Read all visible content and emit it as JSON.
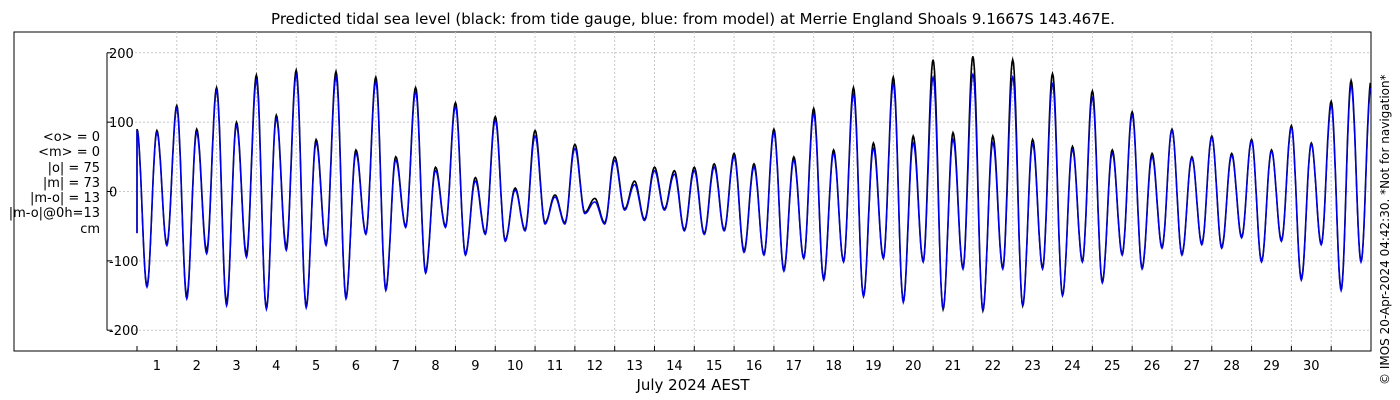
{
  "chart_data": {
    "type": "line",
    "title": "Predicted tidal sea level (black: from tide gauge, blue: from model) at Merrie England Shoals 9.1667S 143.467E.",
    "xlabel": "July 2024 AEST",
    "ylabel": "",
    "xlim": [
      0,
      31
    ],
    "ylim": [
      -230,
      230
    ],
    "y_ticks": [
      -200,
      -100,
      0,
      100,
      200
    ],
    "x_ticks": [
      "1",
      "2",
      "3",
      "4",
      "5",
      "6",
      "7",
      "8",
      "9",
      "10",
      "11",
      "12",
      "13",
      "14",
      "15",
      "16",
      "17",
      "18",
      "19",
      "20",
      "21",
      "22",
      "23",
      "24",
      "25",
      "26",
      "27",
      "28",
      "29",
      "30"
    ],
    "grid": true,
    "legend": "none",
    "stats": [
      "<o> = 0",
      "<m> = 0",
      "|o| = 75",
      "|m| = 73",
      "|m-o| = 13",
      "|m-o|@0h=13",
      "cm"
    ],
    "series": [
      {
        "name": "black: from tide gauge",
        "color": "#000000",
        "x": [
          0,
          0.5,
          1,
          1.5,
          2,
          2.5,
          3,
          3.5,
          4,
          4.5,
          5,
          5.5,
          6,
          6.5,
          7,
          7.5,
          8,
          8.5,
          9,
          9.5,
          10,
          10.5,
          11,
          11.5,
          12,
          12.5,
          13,
          13.5,
          14,
          14.5,
          15,
          15.5,
          16,
          16.5,
          17,
          17.5,
          18,
          18.5,
          19,
          19.5,
          20,
          20.5,
          21,
          21.5,
          22,
          22.5,
          23,
          23.5,
          24,
          24.5,
          25,
          25.5,
          26,
          26.5,
          27,
          27.5,
          28,
          28.5,
          29,
          29.5,
          30,
          30.5
        ],
        "highs": [
          90,
          88,
          124,
          90,
          150,
          100,
          168,
          110,
          175,
          75,
          173,
          60,
          165,
          50,
          150,
          35,
          128,
          20,
          108,
          5,
          88,
          -5,
          68,
          -10,
          50,
          15,
          35,
          30,
          35,
          40,
          55,
          40,
          90,
          50,
          120,
          60,
          150,
          70,
          165,
          80,
          190,
          85,
          195,
          80,
          190,
          75,
          170,
          65,
          145,
          60,
          115,
          55,
          90,
          50,
          80,
          55,
          75,
          60,
          95,
          70,
          130,
          160
        ],
        "lows": [
          -135,
          -75,
          -150,
          -85,
          -160,
          -90,
          -168,
          -80,
          -165,
          -75,
          -152,
          -60,
          -140,
          -50,
          -115,
          -50,
          -90,
          -60,
          -70,
          -55,
          -45,
          -45,
          -30,
          -45,
          -25,
          -40,
          -25,
          -55,
          -60,
          -55,
          -85,
          -90,
          -112,
          -95,
          -125,
          -100,
          -150,
          -95,
          -158,
          -100,
          -170,
          -110,
          -172,
          -110,
          -165,
          -110,
          -150,
          -100,
          -130,
          -90,
          -110,
          -80,
          -90,
          -75,
          -80,
          -65,
          -100,
          -70,
          -125,
          -75,
          -140,
          -100
        ]
      },
      {
        "name": "blue: from model",
        "color": "#0000ee",
        "x": [
          0,
          0.5,
          1,
          1.5,
          2,
          2.5,
          3,
          3.5,
          4,
          4.5,
          5,
          5.5,
          6,
          6.5,
          7,
          7.5,
          8,
          8.5,
          9,
          9.5,
          10,
          10.5,
          11,
          11.5,
          12,
          12.5,
          13,
          13.5,
          14,
          14.5,
          15,
          15.5,
          16,
          16.5,
          17,
          17.5,
          18,
          18.5,
          19,
          19.5,
          20,
          20.5,
          21,
          21.5,
          22,
          22.5,
          23,
          23.5,
          24,
          24.5,
          25,
          25.5,
          26,
          26.5,
          27,
          27.5,
          28,
          28.5,
          29,
          29.5,
          30,
          30.5
        ],
        "highs": [
          88,
          85,
          120,
          85,
          145,
          95,
          160,
          105,
          168,
          70,
          165,
          55,
          158,
          45,
          143,
          30,
          122,
          15,
          102,
          2,
          80,
          -8,
          62,
          -15,
          45,
          10,
          30,
          25,
          30,
          35,
          50,
          35,
          85,
          45,
          112,
          55,
          140,
          62,
          155,
          70,
          165,
          75,
          170,
          70,
          165,
          68,
          155,
          60,
          135,
          55,
          110,
          50,
          88,
          48,
          78,
          52,
          73,
          58,
          92,
          68,
          124,
          152
        ],
        "lows": [
          -138,
          -78,
          -155,
          -90,
          -165,
          -95,
          -170,
          -85,
          -168,
          -78,
          -155,
          -62,
          -143,
          -52,
          -118,
          -52,
          -92,
          -62,
          -72,
          -57,
          -47,
          -47,
          -32,
          -47,
          -27,
          -42,
          -27,
          -57,
          -62,
          -57,
          -88,
          -92,
          -115,
          -97,
          -128,
          -102,
          -152,
          -97,
          -160,
          -102,
          -168,
          -112,
          -170,
          -112,
          -163,
          -112,
          -150,
          -102,
          -132,
          -92,
          -112,
          -82,
          -92,
          -77,
          -82,
          -67,
          -102,
          -72,
          -128,
          -77,
          -143,
          -102
        ]
      }
    ]
  },
  "credit": "© IMOS 20-Apr-2024 04:42:30. *Not for navigation*"
}
